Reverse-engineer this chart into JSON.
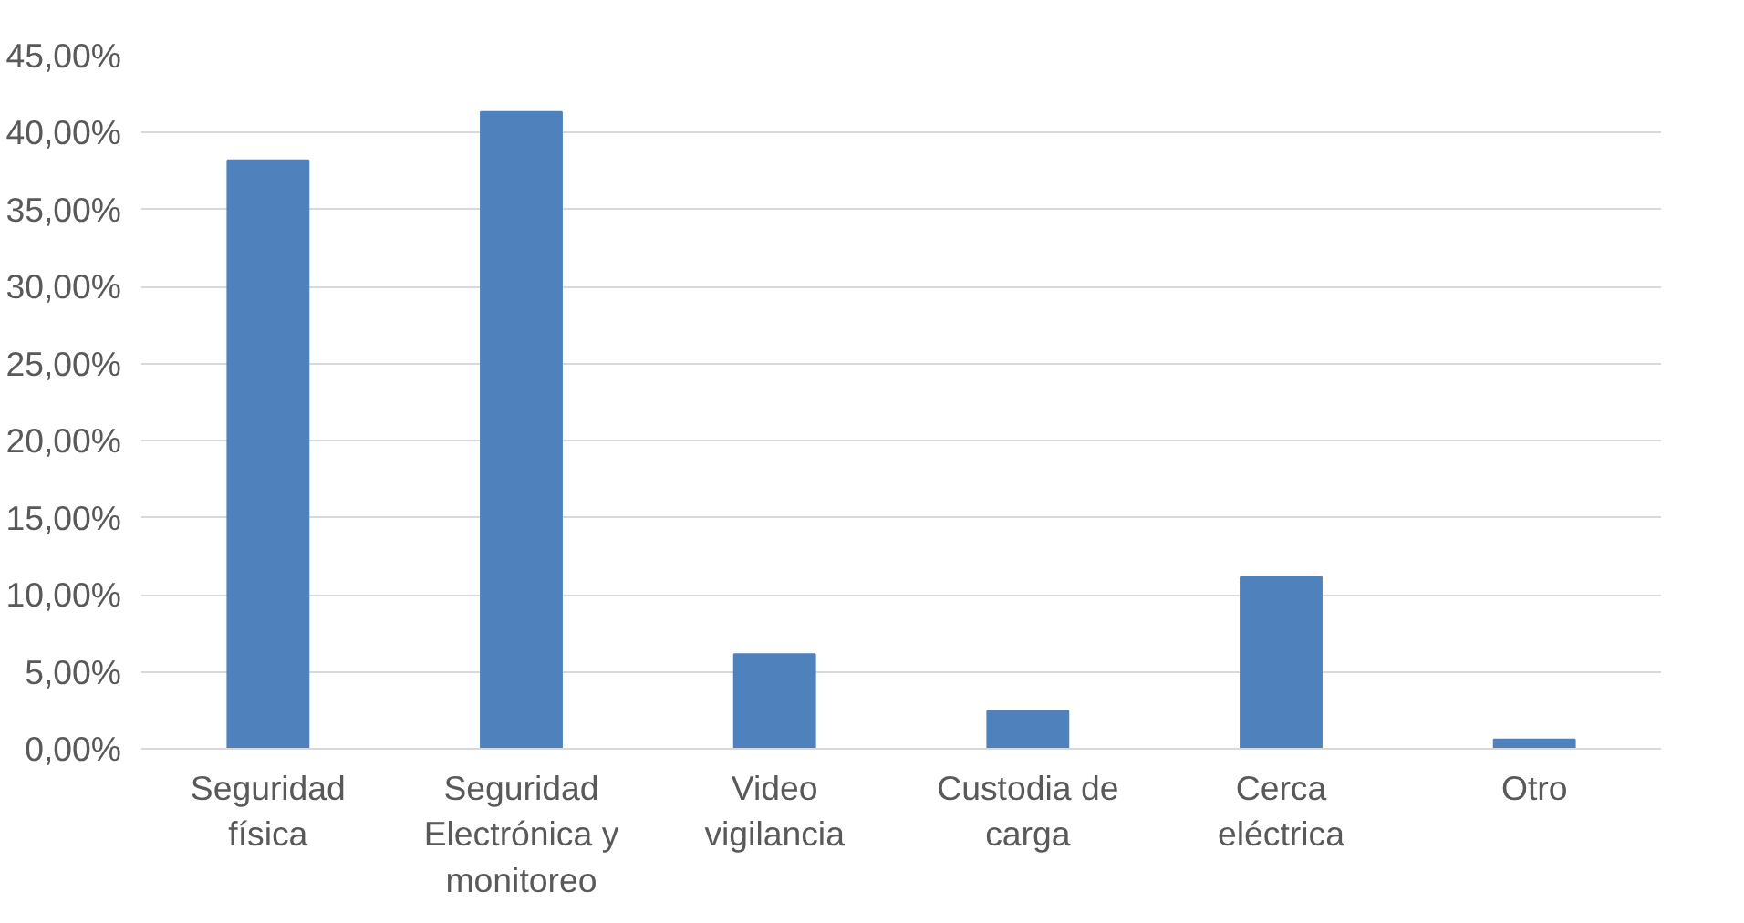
{
  "chart_data": {
    "type": "bar",
    "categories": [
      "Seguridad física",
      "Seguridad Electrónica y monitoreo",
      "Video vigilancia",
      "Custodia de carga",
      "Cerca eléctrica",
      "Otro"
    ],
    "values": [
      38.2,
      41.35,
      6.15,
      2.45,
      11.15,
      0.6
    ],
    "color": "#4f81bd",
    "ylim": [
      0,
      45
    ],
    "yticks": [
      {
        "value": 0,
        "label": "0,00%"
      },
      {
        "value": 5,
        "label": "5,00%"
      },
      {
        "value": 10,
        "label": "10,00%"
      },
      {
        "value": 15,
        "label": "15,00%"
      },
      {
        "value": 20,
        "label": "20,00%"
      },
      {
        "value": 25,
        "label": "25,00%"
      },
      {
        "value": 30,
        "label": "30,00%"
      },
      {
        "value": 35,
        "label": "35,00%"
      },
      {
        "value": 40,
        "label": "40,00%"
      },
      {
        "value": 45,
        "label": "45,00%"
      }
    ],
    "grid": "y"
  }
}
